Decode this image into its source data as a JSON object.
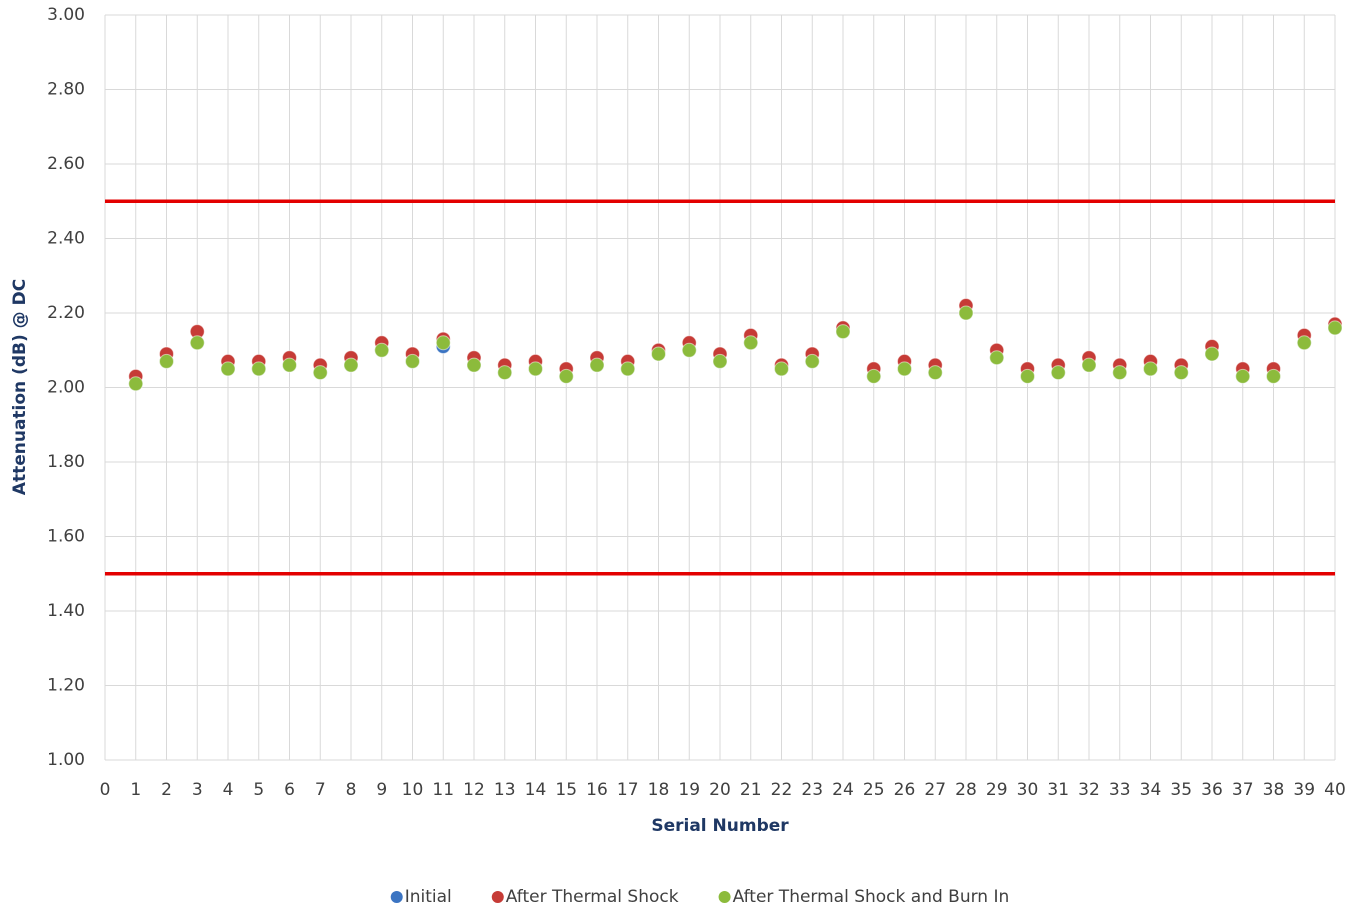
{
  "chart_data": {
    "type": "scatter",
    "y_label": "Attenuation (dB) @ DC",
    "x_label": "Serial Number",
    "x": [
      1,
      2,
      3,
      4,
      5,
      6,
      7,
      8,
      9,
      10,
      11,
      12,
      13,
      14,
      15,
      16,
      17,
      18,
      19,
      20,
      21,
      22,
      23,
      24,
      25,
      26,
      27,
      28,
      29,
      30,
      31,
      32,
      33,
      34,
      35,
      36,
      37,
      38,
      39,
      40
    ],
    "series": [
      {
        "name": "Initial",
        "color": "#3b74c2",
        "values": [
          2.01,
          2.07,
          2.12,
          2.05,
          2.05,
          2.06,
          2.04,
          2.06,
          2.1,
          2.07,
          2.11,
          2.06,
          2.04,
          2.05,
          2.03,
          2.06,
          2.05,
          2.09,
          2.1,
          2.07,
          2.12,
          2.05,
          2.07,
          2.15,
          2.03,
          2.05,
          2.04,
          2.2,
          2.08,
          2.03,
          2.04,
          2.06,
          2.04,
          2.05,
          2.04,
          2.09,
          2.03,
          2.03,
          2.12,
          2.16
        ]
      },
      {
        "name": "After Thermal Shock",
        "color": "#c63b36",
        "values": [
          2.03,
          2.09,
          2.15,
          2.07,
          2.07,
          2.08,
          2.06,
          2.08,
          2.12,
          2.09,
          2.13,
          2.08,
          2.06,
          2.07,
          2.05,
          2.08,
          2.07,
          2.1,
          2.12,
          2.09,
          2.14,
          2.06,
          2.09,
          2.16,
          2.05,
          2.07,
          2.06,
          2.22,
          2.1,
          2.05,
          2.06,
          2.08,
          2.06,
          2.07,
          2.06,
          2.11,
          2.05,
          2.05,
          2.14,
          2.17
        ]
      },
      {
        "name": "After Thermal Shock and Burn In",
        "color": "#8cbb3c",
        "values": [
          2.01,
          2.07,
          2.12,
          2.05,
          2.05,
          2.06,
          2.04,
          2.06,
          2.1,
          2.07,
          2.12,
          2.06,
          2.04,
          2.05,
          2.03,
          2.06,
          2.05,
          2.09,
          2.1,
          2.07,
          2.12,
          2.05,
          2.07,
          2.15,
          2.03,
          2.05,
          2.04,
          2.2,
          2.08,
          2.03,
          2.04,
          2.06,
          2.04,
          2.05,
          2.04,
          2.09,
          2.03,
          2.03,
          2.12,
          2.16
        ]
      }
    ],
    "limit_lines": [
      2.5,
      1.5
    ],
    "limit_line_color": "#e30000",
    "xlim": [
      0,
      40
    ],
    "xticks": [
      0,
      1,
      2,
      3,
      4,
      5,
      6,
      7,
      8,
      9,
      10,
      11,
      12,
      13,
      14,
      15,
      16,
      17,
      18,
      19,
      20,
      21,
      22,
      23,
      24,
      25,
      26,
      27,
      28,
      29,
      30,
      31,
      32,
      33,
      34,
      35,
      36,
      37,
      38,
      39,
      40
    ],
    "ylim": [
      1,
      3
    ],
    "yticks": [
      {
        "value": 1,
        "label": "1.00"
      },
      {
        "value": 1.2,
        "label": "1.20"
      },
      {
        "value": 1.4,
        "label": "1.40"
      },
      {
        "value": 1.6,
        "label": "1.60"
      },
      {
        "value": 1.8,
        "label": "1.80"
      },
      {
        "value": 2,
        "label": "2.00"
      },
      {
        "value": 2.2,
        "label": "2.20"
      },
      {
        "value": 2.4,
        "label": "2.40"
      },
      {
        "value": 2.6,
        "label": "2.60"
      },
      {
        "value": 2.8,
        "label": "2.80"
      },
      {
        "value": 3,
        "label": "3.00"
      }
    ],
    "grid": true,
    "legend": "bottom"
  }
}
